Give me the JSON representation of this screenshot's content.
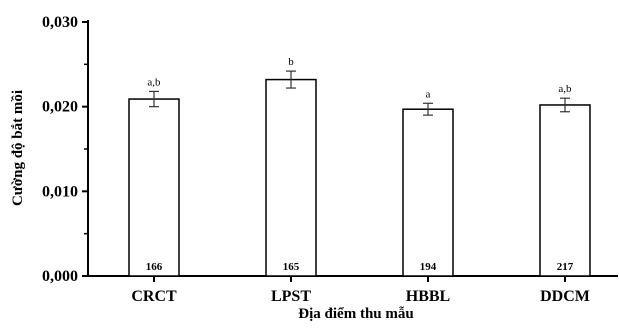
{
  "chart_data": {
    "type": "bar",
    "title": "",
    "xlabel": "Địa điểm thu mẫu",
    "ylabel": "Cường độ bắt mồi",
    "ylim": [
      0,
      0.03
    ],
    "yticks": [
      "0,000",
      "0,010",
      "0,020",
      "0,030"
    ],
    "grid": false,
    "categories": [
      "CRCT",
      "LPST",
      "HBBL",
      "DDCM"
    ],
    "values": [
      0.0209,
      0.0232,
      0.0197,
      0.0202
    ],
    "errors": [
      0.0009,
      0.001,
      0.0007,
      0.0008
    ],
    "significance_letters": [
      "a,b",
      "b",
      "a",
      "a,b"
    ],
    "sample_sizes": [
      "166",
      "165",
      "194",
      "217"
    ],
    "colors": {
      "bar_fill": "#ffffff",
      "bar_stroke": "#000000",
      "axis": "#000000"
    }
  }
}
